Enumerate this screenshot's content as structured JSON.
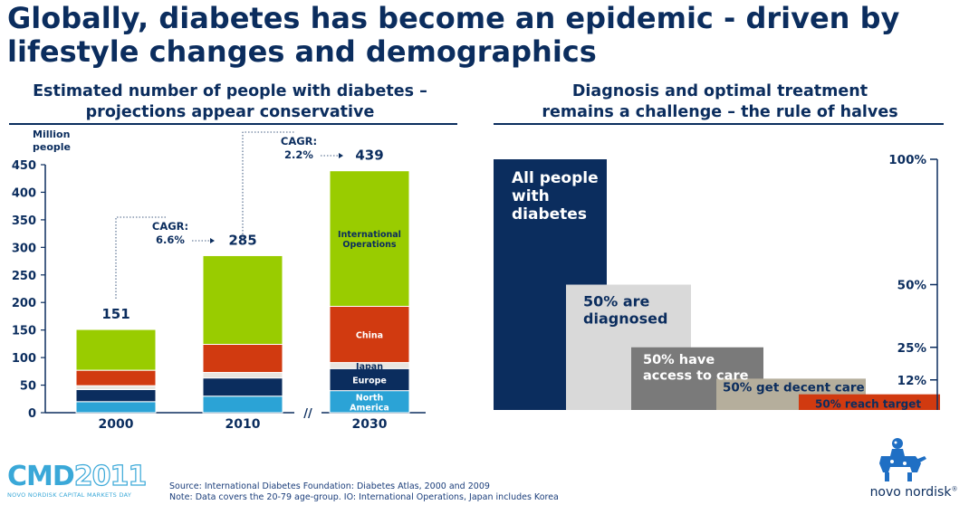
{
  "title": "Globally, diabetes has become an epidemic - driven by lifestyle changes and demographics",
  "left_heading": [
    "Estimated number of people with diabetes –",
    "projections appear conservative"
  ],
  "right_heading": [
    "Diagnosis and optimal treatment",
    "remains a challenge – the rule of halves"
  ],
  "chart_data": [
    {
      "type": "bar",
      "stacked": true,
      "ylabel": "Million people",
      "ylim": [
        0,
        450
      ],
      "yticks": [
        0,
        50,
        100,
        150,
        200,
        250,
        300,
        350,
        400,
        450
      ],
      "categories": [
        "2000",
        "2010",
        "2030"
      ],
      "totals": [
        151,
        285,
        439
      ],
      "axis_break": "//",
      "cagr": [
        {
          "label": "CAGR:",
          "value": "6.6%"
        },
        {
          "label": "CAGR:",
          "value": "2.2%"
        }
      ],
      "series": [
        {
          "name": "North America",
          "color": "#2ba3d6",
          "values": [
            20,
            30,
            40
          ]
        },
        {
          "name": "Europe",
          "color": "#0b2d5e",
          "values": [
            22,
            33,
            40
          ]
        },
        {
          "name": "Japan",
          "color": "#e8e6e1",
          "values": [
            7,
            10,
            11
          ]
        },
        {
          "name": "China",
          "color": "#d13a10",
          "values": [
            28,
            51,
            102
          ]
        },
        {
          "name": "International Operations",
          "color": "#99cc00",
          "values": [
            74,
            161,
            246
          ]
        }
      ],
      "segment_labels": [
        {
          "series": "International Operations",
          "category": "2030",
          "lines": [
            "International",
            "Operations"
          ]
        },
        {
          "series": "China",
          "category": "2030",
          "lines": [
            "China"
          ]
        },
        {
          "series": "Japan",
          "category": "2030",
          "lines": [
            "Japan"
          ]
        },
        {
          "series": "Europe",
          "category": "2030",
          "lines": [
            "Europe"
          ]
        },
        {
          "series": "North America",
          "category": "2030",
          "lines": [
            "North",
            "America"
          ]
        }
      ]
    },
    {
      "type": "bar",
      "title": "the rule of halves",
      "yticks": [
        "100%",
        "50%",
        "25%",
        "12%"
      ],
      "ytick_values": [
        100,
        50,
        25,
        12
      ],
      "steps": [
        {
          "lines": [
            "All people",
            "with",
            "diabetes"
          ],
          "value": 100,
          "color": "#0b2d5e",
          "text_color": "#ffffff"
        },
        {
          "lines": [
            "50% are",
            "diagnosed"
          ],
          "value": 50,
          "color": "#d9d9d9",
          "text_color": "#0b2d5e"
        },
        {
          "lines": [
            "50% have",
            "access to care"
          ],
          "value": 25,
          "color": "#7a7a7a",
          "text_color": "#ffffff"
        },
        {
          "lines": [
            "50% get decent care"
          ],
          "value": 12.5,
          "color": "#b5ae9c",
          "text_color": "#0b2d5e"
        },
        {
          "lines": [
            "50% reach target"
          ],
          "value": 6.25,
          "color": "#d13a10",
          "text_color": "#0b2d5e"
        }
      ]
    }
  ],
  "footer": {
    "source": "Source: International Diabetes Foundation: Diabetes Atlas, 2000 and 2009",
    "note": "Note: Data covers the 20-79 age-group. IO: International Operations, Japan includes Korea"
  },
  "event_logo": {
    "main": "CMD",
    "year": "2011",
    "sub": "NOVO NORDISK CAPITAL MARKETS DAY"
  },
  "company_logo": {
    "name": "novo nordisk",
    "mark": "®"
  }
}
